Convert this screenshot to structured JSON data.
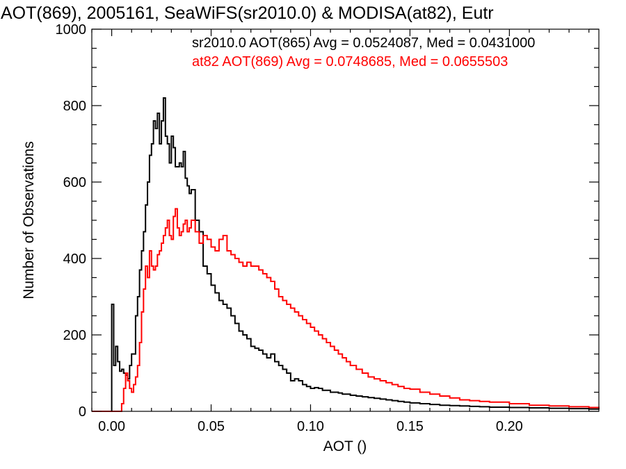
{
  "colors": {
    "background": "#ffffff",
    "axis": "#000000",
    "sr2010": "#000000",
    "at82": "#ff0000"
  },
  "chart_data": {
    "type": "line",
    "title": "AOT(869), 2005161, SeaWiFS(sr2010.0) & MODISA(at82), Eutr",
    "xlabel": "AOT ()",
    "ylabel": "Number of Observations",
    "xlim": [
      -0.01,
      0.245
    ],
    "ylim": [
      0,
      1000
    ],
    "xticks": [
      "0.00",
      "0.05",
      "0.10",
      "0.15",
      "0.20"
    ],
    "yticks": [
      "0",
      "200",
      "400",
      "600",
      "800",
      "1000"
    ],
    "grid": false,
    "step": true,
    "annotations": [
      {
        "text": "sr2010.0 AOT(865) Avg = 0.0524087, Med = 0.0431000",
        "color": "#000000"
      },
      {
        "text": "at82 AOT(869) Avg = 0.0748685, Med = 0.0655503",
        "color": "#ff0000"
      }
    ],
    "series": [
      {
        "color": "#000000",
        "x": [
          -0.01,
          -0.001,
          0.0,
          0.001,
          0.002,
          0.003,
          0.004,
          0.005,
          0.006,
          0.007,
          0.008,
          0.009,
          0.01,
          0.011,
          0.012,
          0.013,
          0.014,
          0.015,
          0.016,
          0.017,
          0.018,
          0.019,
          0.02,
          0.021,
          0.022,
          0.023,
          0.024,
          0.025,
          0.026,
          0.027,
          0.028,
          0.029,
          0.03,
          0.031,
          0.032,
          0.033,
          0.034,
          0.035,
          0.036,
          0.037,
          0.038,
          0.039,
          0.04,
          0.042,
          0.044,
          0.046,
          0.048,
          0.05,
          0.052,
          0.054,
          0.056,
          0.058,
          0.06,
          0.062,
          0.064,
          0.066,
          0.068,
          0.07,
          0.072,
          0.074,
          0.076,
          0.078,
          0.08,
          0.082,
          0.084,
          0.086,
          0.088,
          0.09,
          0.092,
          0.094,
          0.096,
          0.098,
          0.1,
          0.102,
          0.104,
          0.106,
          0.108,
          0.11,
          0.112,
          0.114,
          0.116,
          0.118,
          0.12,
          0.123,
          0.126,
          0.129,
          0.132,
          0.135,
          0.138,
          0.141,
          0.144,
          0.147,
          0.15,
          0.155,
          0.16,
          0.165,
          0.17,
          0.175,
          0.18,
          0.185,
          0.19,
          0.2,
          0.21,
          0.22,
          0.23,
          0.24,
          0.245
        ],
        "values": [
          0,
          0,
          280,
          120,
          170,
          130,
          105,
          110,
          100,
          95,
          85,
          120,
          150,
          150,
          250,
          300,
          370,
          420,
          470,
          540,
          600,
          670,
          700,
          760,
          740,
          780,
          700,
          760,
          820,
          720,
          700,
          650,
          720,
          690,
          640,
          640,
          650,
          640,
          680,
          610,
          590,
          570,
          580,
          500,
          470,
          380,
          360,
          330,
          310,
          290,
          280,
          270,
          250,
          230,
          210,
          200,
          190,
          170,
          165,
          160,
          150,
          140,
          150,
          130,
          120,
          110,
          100,
          80,
          85,
          80,
          70,
          65,
          60,
          62,
          60,
          55,
          55,
          50,
          50,
          48,
          45,
          45,
          42,
          40,
          38,
          36,
          34,
          32,
          30,
          28,
          26,
          24,
          22,
          20,
          18,
          16,
          15,
          14,
          13,
          12,
          11,
          10,
          9,
          8,
          7,
          6,
          5
        ]
      },
      {
        "color": "#ff0000",
        "x": [
          -0.01,
          0.005,
          0.006,
          0.007,
          0.008,
          0.009,
          0.01,
          0.011,
          0.012,
          0.013,
          0.014,
          0.015,
          0.016,
          0.017,
          0.018,
          0.019,
          0.02,
          0.021,
          0.022,
          0.023,
          0.024,
          0.025,
          0.026,
          0.027,
          0.028,
          0.029,
          0.03,
          0.031,
          0.032,
          0.033,
          0.034,
          0.035,
          0.036,
          0.037,
          0.038,
          0.039,
          0.04,
          0.042,
          0.044,
          0.046,
          0.048,
          0.05,
          0.052,
          0.054,
          0.056,
          0.058,
          0.06,
          0.062,
          0.064,
          0.066,
          0.068,
          0.07,
          0.072,
          0.074,
          0.076,
          0.078,
          0.08,
          0.082,
          0.084,
          0.086,
          0.088,
          0.09,
          0.092,
          0.094,
          0.096,
          0.098,
          0.1,
          0.102,
          0.104,
          0.106,
          0.108,
          0.11,
          0.112,
          0.114,
          0.116,
          0.118,
          0.12,
          0.123,
          0.126,
          0.129,
          0.132,
          0.135,
          0.138,
          0.141,
          0.144,
          0.147,
          0.15,
          0.155,
          0.16,
          0.165,
          0.17,
          0.175,
          0.18,
          0.185,
          0.19,
          0.2,
          0.21,
          0.22,
          0.23,
          0.24,
          0.245
        ],
        "values": [
          0,
          20,
          60,
          100,
          80,
          60,
          50,
          70,
          90,
          120,
          180,
          260,
          320,
          380,
          350,
          420,
          380,
          370,
          380,
          410,
          420,
          440,
          460,
          480,
          500,
          460,
          450,
          510,
          530,
          480,
          460,
          470,
          490,
          500,
          470,
          480,
          500,
          470,
          440,
          460,
          450,
          430,
          420,
          450,
          460,
          420,
          410,
          400,
          390,
          380,
          390,
          380,
          380,
          370,
          360,
          350,
          340,
          320,
          300,
          290,
          280,
          270,
          260,
          250,
          240,
          230,
          220,
          210,
          200,
          190,
          180,
          170,
          160,
          150,
          140,
          130,
          120,
          110,
          100,
          90,
          85,
          80,
          75,
          70,
          65,
          60,
          58,
          50,
          45,
          40,
          35,
          30,
          28,
          26,
          24,
          20,
          16,
          14,
          12,
          10,
          8
        ]
      }
    ]
  }
}
